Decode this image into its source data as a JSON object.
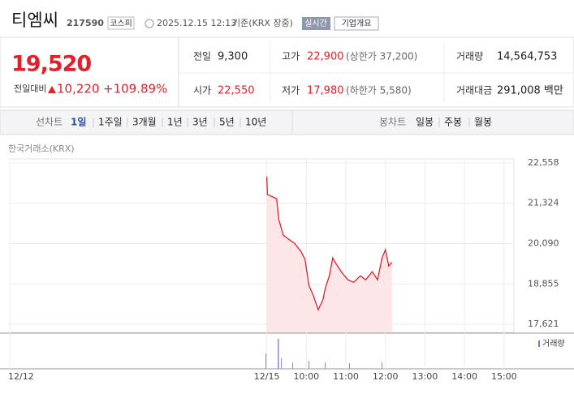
{
  "header": {
    "title": "티엠씨",
    "code": "217590",
    "market": "코스피",
    "timestamp": "2025.12.15 12:13",
    "basis": "기준(KRX 장중)",
    "buttons": [
      "실시간",
      "기업개요"
    ]
  },
  "quote": {
    "price": "19,520",
    "change_label": "전일대비",
    "change": "10,220",
    "change_pct": "+109.89%"
  },
  "stats": [
    [
      {
        "label": "전일",
        "value": "9,300"
      },
      {
        "label": "고가",
        "value": "22,900",
        "note": "(상한가 37,200)"
      },
      {
        "label": "거래량",
        "value": "14,564,753"
      }
    ],
    [
      {
        "label": "시가",
        "value": "22,550"
      },
      {
        "label": "저가",
        "value": "17,980",
        "note": "(하한가 5,580)"
      },
      {
        "label": "거래대금",
        "value": "291,008 백만"
      }
    ]
  ],
  "tabs": {
    "line_label": "선차트",
    "periods": [
      "1일",
      "1주일",
      "3개월",
      "1년",
      "3년",
      "5년",
      "10년"
    ],
    "candle_label": "봉차트",
    "candles": [
      "일봉",
      "주봉",
      "월봉"
    ]
  },
  "chart_data": {
    "type": "line",
    "source": "한국거래소(KRX)",
    "volume_label": "거래량",
    "color": "#e0202a",
    "fill": "#fde6e8",
    "grid": true,
    "x": [
      0,
      1,
      15,
      18,
      25,
      33,
      42,
      52,
      58,
      64,
      71,
      78,
      85,
      89,
      95,
      100,
      105,
      113,
      123,
      132,
      142,
      150,
      160,
      168,
      175,
      180,
      185,
      190
    ],
    "values": [
      22136,
      21590,
      21465,
      20845,
      20350,
      20225,
      20100,
      19850,
      19600,
      18810,
      18485,
      18064,
      18360,
      18735,
      19105,
      19650,
      19480,
      19230,
      18980,
      18905,
      19105,
      18980,
      19230,
      18980,
      19650,
      19900,
      19405,
      19520
    ],
    "xlim": [
      -390,
      375
    ],
    "ylim": [
      17373,
      22558
    ],
    "xticks": [
      {
        "value": -390,
        "label": "12/12"
      },
      {
        "value": 0,
        "label": "12/15"
      },
      {
        "value": 60,
        "label": "10:00"
      },
      {
        "value": 120,
        "label": "11:00"
      },
      {
        "value": 180,
        "label": "12:00"
      },
      {
        "value": 240,
        "label": "13:00"
      },
      {
        "value": 300,
        "label": "14:00"
      },
      {
        "value": 360,
        "label": "15:00"
      }
    ],
    "yticks": [
      {
        "value": 17621,
        "label": "17,621"
      },
      {
        "value": 18855,
        "label": "18,855"
      },
      {
        "value": 20090,
        "label": "20,090"
      },
      {
        "value": 21324,
        "label": "21,324"
      },
      {
        "value": 22558,
        "label": "22,558"
      }
    ]
  }
}
